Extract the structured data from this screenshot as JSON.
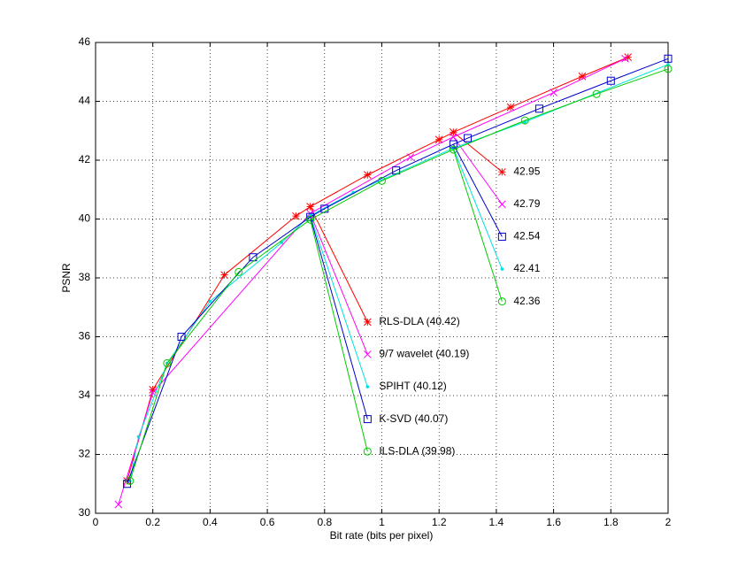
{
  "chart_data": {
    "type": "line",
    "xlabel": "Bit rate (bits per pixel)",
    "ylabel": "PSNR",
    "xlim": [
      0,
      2
    ],
    "ylim": [
      30,
      46
    ],
    "xticks": [
      0,
      0.2,
      0.4,
      0.6,
      0.8,
      1,
      1.2,
      1.4,
      1.6,
      1.8,
      2
    ],
    "yticks": [
      30,
      32,
      34,
      36,
      38,
      40,
      42,
      44,
      46
    ],
    "grid": true,
    "series": [
      {
        "name": "RLS-DLA (40.42)",
        "color": "#ff0000",
        "marker": "star",
        "x": [
          0.11,
          0.2,
          0.45,
          0.7,
          0.75,
          0.95,
          1.2,
          1.25,
          1.45,
          1.7,
          1.86
        ],
        "values": [
          31.1,
          34.2,
          38.1,
          40.1,
          40.42,
          41.5,
          42.7,
          42.95,
          43.8,
          44.85,
          45.5
        ],
        "callouts": [
          {
            "x": 0.75,
            "y": 40.42,
            "to": [
              0.95,
              36.5
            ]
          },
          {
            "x": 1.25,
            "y": 42.95,
            "to": [
              1.42,
              41.6
            ]
          }
        ]
      },
      {
        "name": "9/7 wavelet (40.19)",
        "color": "#ff00ff",
        "marker": "x",
        "x": [
          0.08,
          0.2,
          0.75,
          1.1,
          1.25,
          1.6,
          1.85
        ],
        "values": [
          30.3,
          34.1,
          40.19,
          42.1,
          42.79,
          44.3,
          45.45
        ],
        "callouts": [
          {
            "x": 0.75,
            "y": 40.19,
            "to": [
              0.95,
              35.4
            ]
          },
          {
            "x": 1.25,
            "y": 42.79,
            "to": [
              1.42,
              40.5
            ]
          }
        ]
      },
      {
        "name": "SPIHT (40.12)",
        "color": "#00e0e0",
        "marker": "dot",
        "x": [
          0.12,
          0.15,
          0.25,
          0.4,
          0.65,
          0.75,
          0.9,
          1.25,
          1.5,
          2
        ],
        "values": [
          31.1,
          32.6,
          35.1,
          37.2,
          39.2,
          40.12,
          40.9,
          42.41,
          43.3,
          45.25
        ],
        "callouts": [
          {
            "x": 0.75,
            "y": 40.12,
            "to": [
              0.95,
              34.3
            ]
          },
          {
            "x": 1.25,
            "y": 42.41,
            "to": [
              1.42,
              38.3
            ]
          }
        ]
      },
      {
        "name": "K-SVD (40.07)",
        "color": "#0000cc",
        "marker": "square",
        "x": [
          0.11,
          0.3,
          0.55,
          0.75,
          0.8,
          1.05,
          1.25,
          1.3,
          1.55,
          1.8,
          2
        ],
        "values": [
          31.0,
          36.0,
          38.7,
          40.07,
          40.35,
          41.65,
          42.54,
          42.75,
          43.75,
          44.7,
          45.45
        ],
        "callouts": [
          {
            "x": 0.75,
            "y": 40.07,
            "to": [
              0.95,
              33.2
            ]
          },
          {
            "x": 1.25,
            "y": 42.54,
            "to": [
              1.42,
              39.4
            ]
          }
        ]
      },
      {
        "name": "ILS-DLA (39.98)",
        "color": "#00cc00",
        "marker": "circle",
        "x": [
          0.12,
          0.25,
          0.5,
          0.75,
          1.0,
          1.25,
          1.5,
          1.75,
          2
        ],
        "values": [
          31.1,
          35.1,
          38.2,
          39.98,
          41.3,
          42.36,
          43.35,
          44.25,
          45.1
        ],
        "callouts": [
          {
            "x": 0.75,
            "y": 39.98,
            "to": [
              0.95,
              32.1
            ]
          },
          {
            "x": 1.25,
            "y": 42.36,
            "to": [
              1.42,
              37.2
            ]
          }
        ]
      }
    ]
  }
}
